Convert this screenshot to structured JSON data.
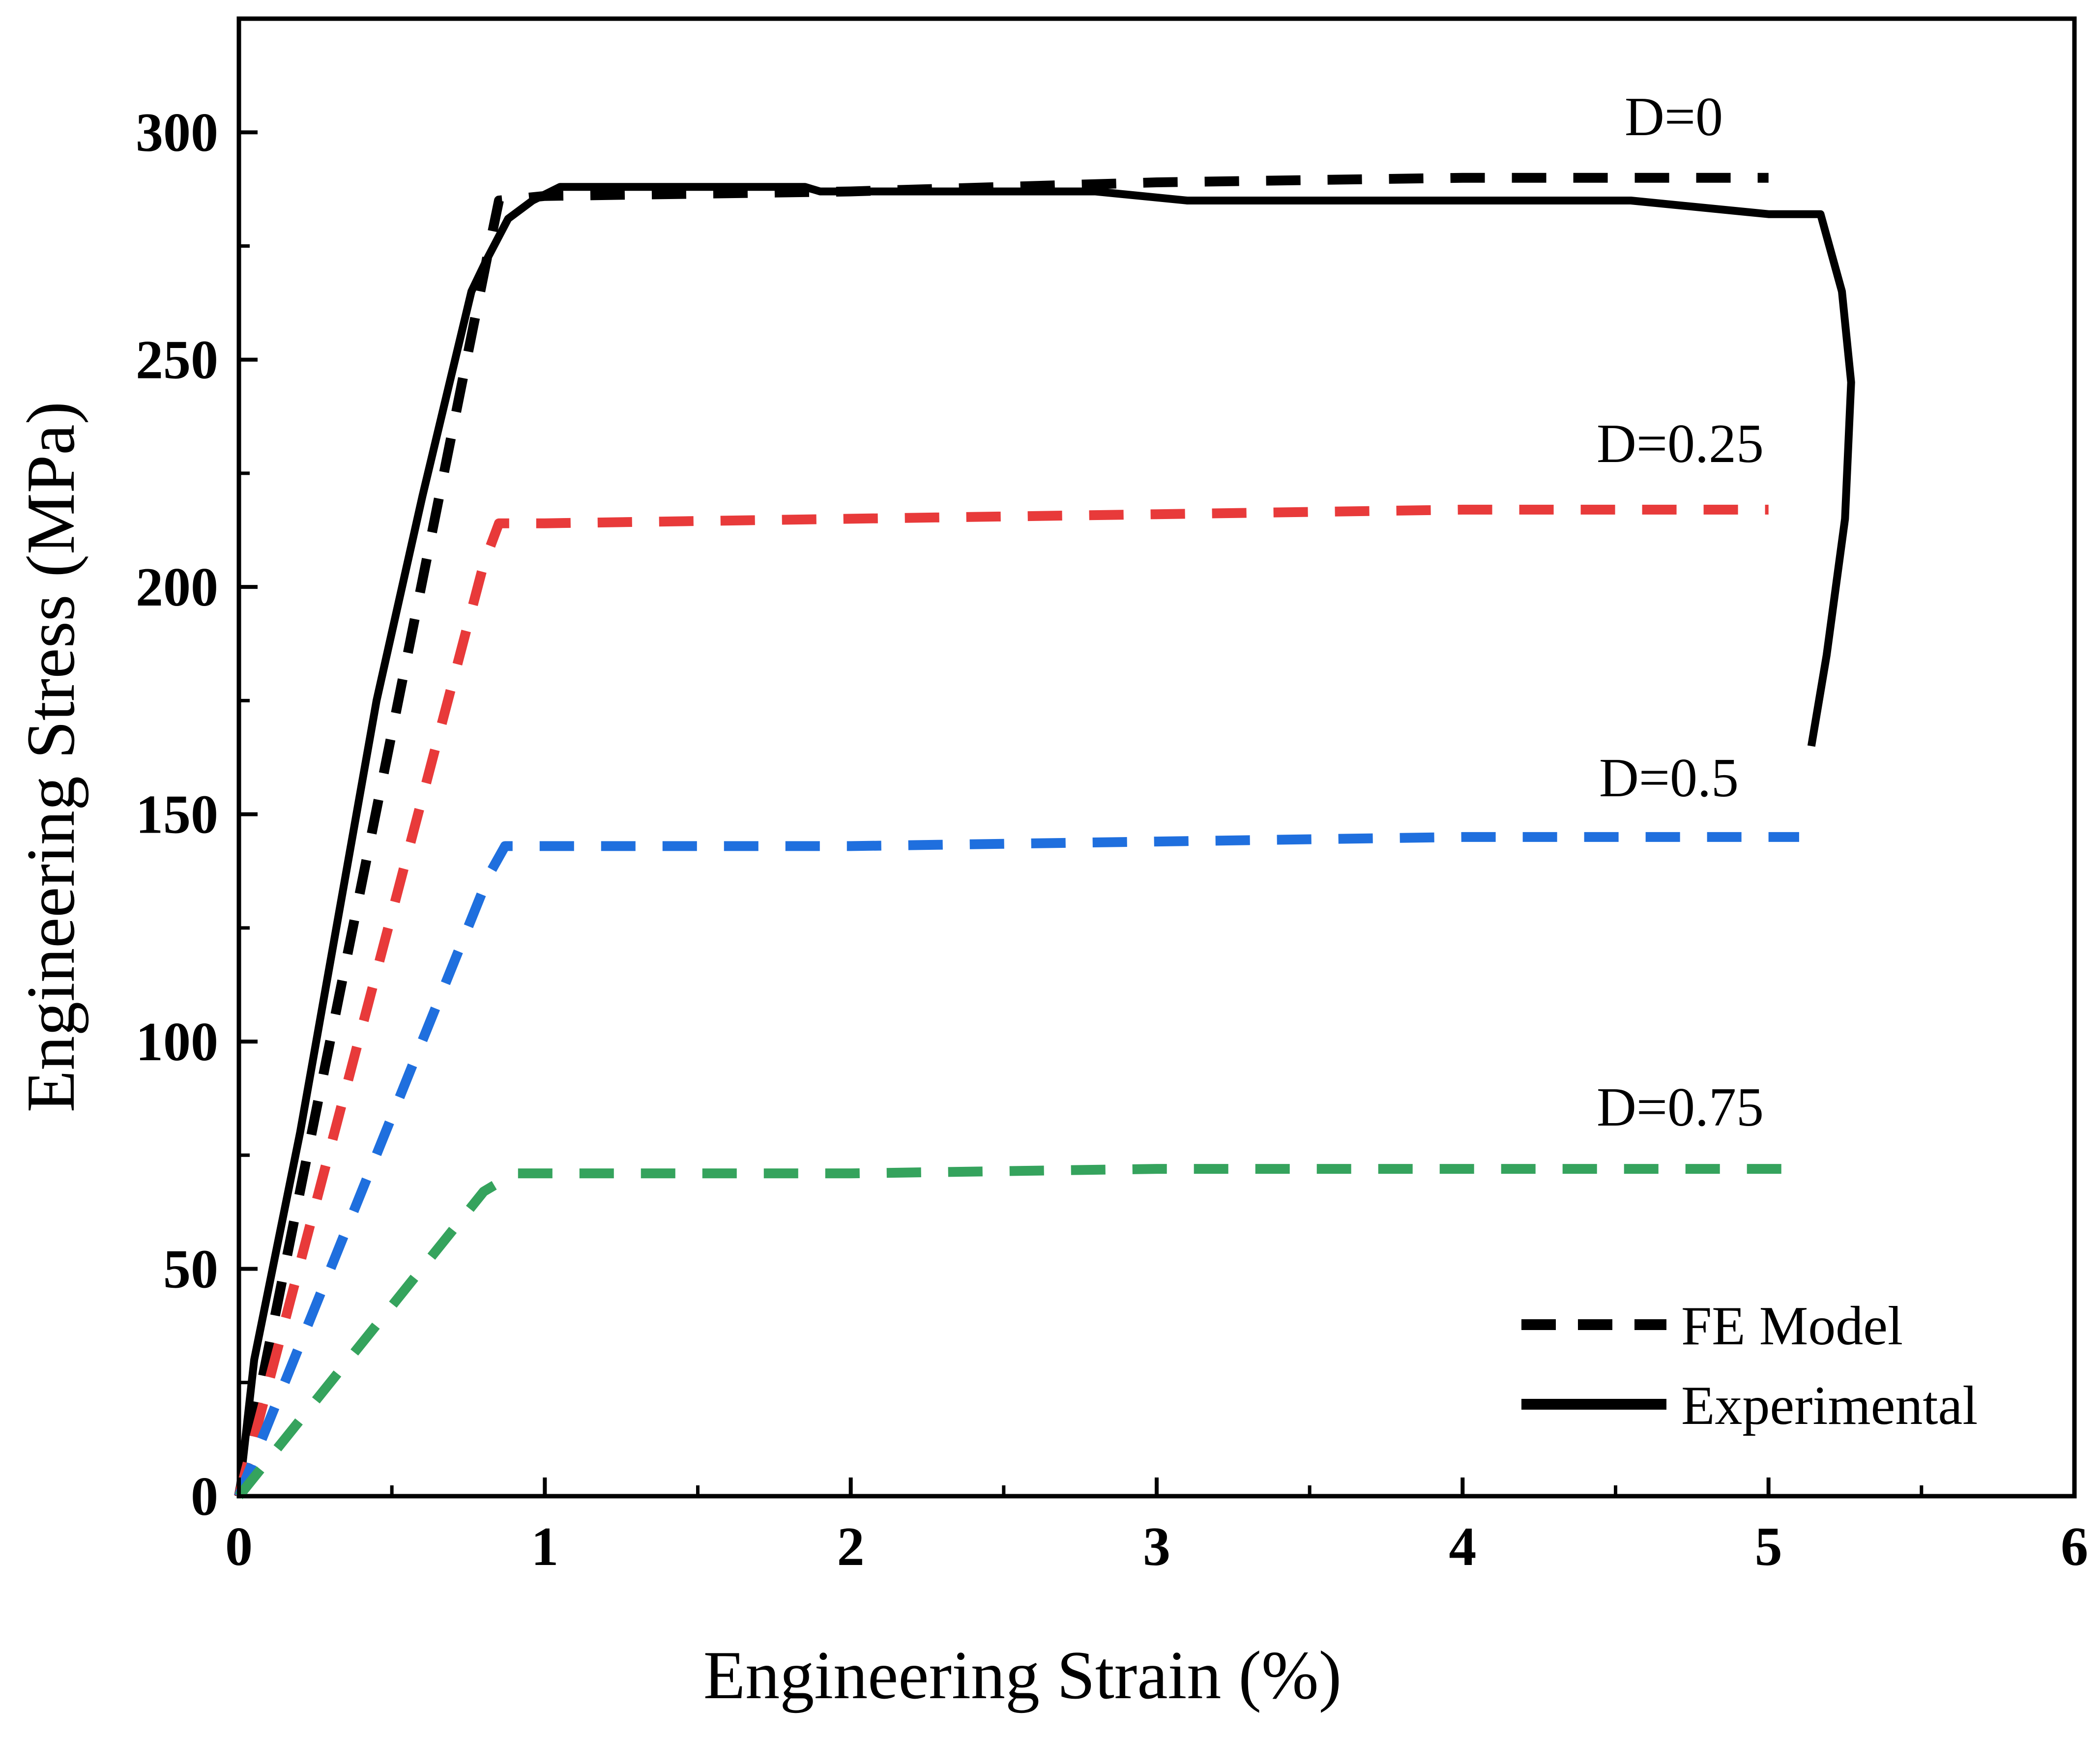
{
  "chart_data": {
    "type": "line",
    "title": "",
    "xlabel": "Engineering Strain (%)",
    "ylabel": "Engineering Stress (MPa)",
    "xlim": [
      0,
      6
    ],
    "ylim": [
      0,
      325
    ],
    "xticks": [
      0,
      1,
      2,
      3,
      4,
      5,
      6
    ],
    "yticks": [
      0,
      50,
      100,
      150,
      200,
      250,
      300
    ],
    "grid": false,
    "legend": {
      "placement": "bottom-right",
      "entries": [
        {
          "label": "FE Model",
          "style": "dashed"
        },
        {
          "label": "Experimental",
          "style": "solid"
        }
      ]
    },
    "series": [
      {
        "name": "Experimental",
        "style": "solid",
        "color": "#000000",
        "x": [
          0,
          0.05,
          0.2,
          0.45,
          0.6,
          0.76,
          0.81,
          0.88,
          0.96,
          1.05,
          1.85,
          1.9,
          2.8,
          3.1,
          4.55,
          5.0,
          5.17,
          5.24,
          5.27,
          5.25,
          5.19,
          5.14
        ],
        "y": [
          0,
          30,
          80,
          175,
          220,
          265,
          272,
          281,
          285,
          288,
          288,
          287,
          287,
          285,
          285,
          282,
          282,
          265,
          245,
          215,
          185,
          165
        ]
      },
      {
        "name": "FE Model D=0",
        "style": "dashed",
        "color": "#000000",
        "x": [
          0,
          0.81,
          0.85,
          1.0,
          2.0,
          3.0,
          4.0,
          5.0
        ],
        "y": [
          0,
          272,
          285,
          286,
          287,
          289,
          290,
          290
        ]
      },
      {
        "name": "FE Model D=0.25",
        "style": "dashed",
        "color": "#e83a3a",
        "x": [
          0,
          0.8,
          0.85,
          1.0,
          2.0,
          3.0,
          4.0,
          5.0
        ],
        "y": [
          0,
          205,
          214,
          214,
          215,
          216,
          217,
          217
        ]
      },
      {
        "name": "FE Model D=0.5",
        "style": "dashed",
        "color": "#1f6fde",
        "x": [
          0,
          0.82,
          0.87,
          1.0,
          2.0,
          3.0,
          4.0,
          5.1
        ],
        "y": [
          0,
          137,
          143,
          143,
          143,
          144,
          145,
          145
        ]
      },
      {
        "name": "FE Model D=0.75",
        "style": "dashed",
        "color": "#35a35d",
        "x": [
          0,
          0.8,
          0.9,
          1.0,
          2.0,
          3.0,
          4.0,
          5.1
        ],
        "y": [
          0,
          67,
          71,
          71,
          71,
          72,
          72,
          72
        ]
      }
    ],
    "annotations": [
      {
        "text": "D=0",
        "x": 4.7,
        "y": 300
      },
      {
        "text": "D=0.25",
        "x": 4.7,
        "y": 230
      },
      {
        "text": "D=0.5",
        "x": 4.7,
        "y": 155
      },
      {
        "text": "D=0.75",
        "x": 4.7,
        "y": 82
      }
    ]
  }
}
